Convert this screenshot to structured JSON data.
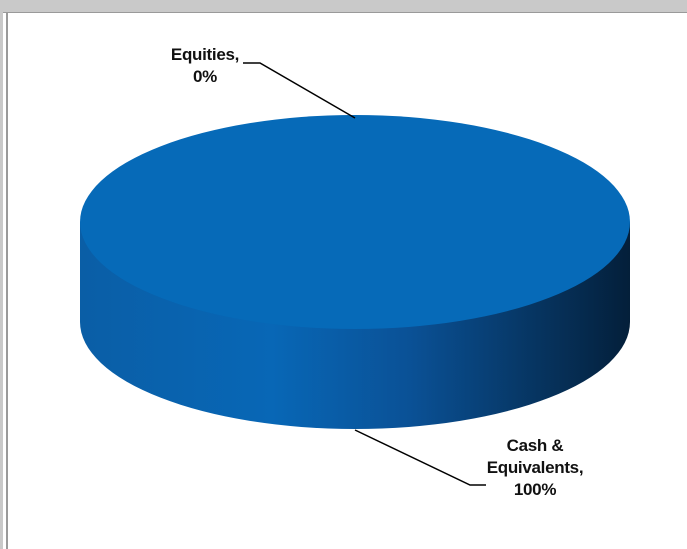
{
  "chart_data": {
    "type": "pie",
    "style": "3d",
    "slices": [
      {
        "label": "Equities",
        "value": 0,
        "percent_label": "0%",
        "color": "#1f5fa8"
      },
      {
        "label": "Cash & Equivalents",
        "value": 100,
        "percent_label": "100%",
        "color": "#0a69b8"
      }
    ],
    "data_labels": {
      "equities_line1": "Equities,",
      "equities_line2": "0%",
      "cash_line1": "Cash &",
      "cash_line2": "Equivalents,",
      "cash_line3": "100%"
    },
    "legend": "none",
    "colors": {
      "top": "#066ab8",
      "side_light": "#0a66b0",
      "side_dark": "#062a4c"
    }
  }
}
